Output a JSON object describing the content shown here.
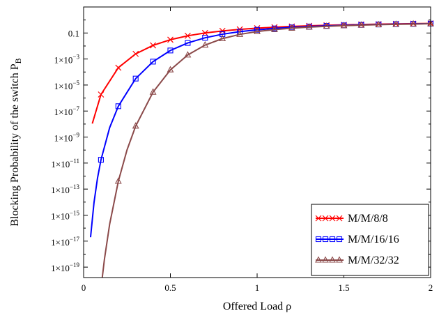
{
  "chart_data": {
    "type": "line",
    "title": "",
    "xlabel": "Offered Load  ρ",
    "ylabel": "Blocking Probability of the switch P",
    "ylabel_subscript": "B",
    "xlim": [
      0,
      2
    ],
    "ylim_log10": [
      -19.8,
      1.0
    ],
    "y_scale": "log",
    "grid": false,
    "legend_position": "bottom-right",
    "x_ticks": [
      {
        "value": 0,
        "label": "0"
      },
      {
        "value": 0.5,
        "label": "0.5"
      },
      {
        "value": 1,
        "label": "1"
      },
      {
        "value": 1.5,
        "label": "1.5"
      },
      {
        "value": 2,
        "label": "2"
      }
    ],
    "y_ticks": [
      {
        "exp": -1,
        "label": "0.1",
        "mant": "",
        "sup": ""
      },
      {
        "exp": -3,
        "label": "",
        "mant": "1×10",
        "sup": "−3"
      },
      {
        "exp": -5,
        "label": "",
        "mant": "1×10",
        "sup": "−5"
      },
      {
        "exp": -7,
        "label": "",
        "mant": "1×10",
        "sup": "−7"
      },
      {
        "exp": -9,
        "label": "",
        "mant": "1×10",
        "sup": "−9"
      },
      {
        "exp": -11,
        "label": "",
        "mant": "1×10",
        "sup": "−11"
      },
      {
        "exp": -13,
        "label": "",
        "mant": "1×10",
        "sup": "−13"
      },
      {
        "exp": -15,
        "label": "",
        "mant": "1×10",
        "sup": "−15"
      },
      {
        "exp": -17,
        "label": "",
        "mant": "1×10",
        "sup": "−17"
      },
      {
        "exp": -19,
        "label": "",
        "mant": "1×10",
        "sup": "−19"
      }
    ],
    "series": [
      {
        "name": "M/M/8/8",
        "color": "#ff0000",
        "marker": "x",
        "servers": 8,
        "x": [
          0.05,
          0.1,
          0.2,
          0.3,
          0.4,
          0.5,
          0.6,
          0.7,
          0.8,
          0.9,
          1.0,
          1.1,
          1.2,
          1.3,
          1.4,
          1.5,
          1.6,
          1.7,
          1.8,
          1.9,
          2.0
        ],
        "markers_x": [
          0.1,
          0.2,
          0.3,
          0.4,
          0.5,
          0.6,
          0.7,
          0.8,
          0.9,
          1.0,
          1.1,
          1.2,
          1.3,
          1.4,
          1.5,
          1.6,
          1.7,
          1.8,
          1.9,
          2.0
        ]
      },
      {
        "name": "M/M/16/16",
        "color": "#0000ff",
        "marker": "square",
        "servers": 16,
        "x": [
          0.04,
          0.06,
          0.08,
          0.1,
          0.15,
          0.2,
          0.3,
          0.4,
          0.5,
          0.6,
          0.7,
          0.8,
          0.9,
          1.0,
          1.1,
          1.2,
          1.3,
          1.4,
          1.5,
          1.6,
          1.7,
          1.8,
          1.9,
          2.0
        ],
        "markers_x": [
          0.1,
          0.2,
          0.3,
          0.4,
          0.5,
          0.6,
          0.7,
          0.8,
          0.9,
          1.0,
          1.1,
          1.2,
          1.3,
          1.4,
          1.5,
          1.6,
          1.7,
          1.8,
          1.9,
          2.0
        ]
      },
      {
        "name": "M/M/32/32",
        "color": "#8b4a4a",
        "marker": "triangle",
        "servers": 32,
        "x": [
          0.1,
          0.12,
          0.15,
          0.2,
          0.25,
          0.3,
          0.4,
          0.5,
          0.6,
          0.7,
          0.8,
          0.9,
          1.0,
          1.1,
          1.2,
          1.3,
          1.4,
          1.5,
          1.6,
          1.7,
          1.8,
          1.9,
          2.0
        ],
        "markers_x": [
          0.2,
          0.3,
          0.4,
          0.5,
          0.6,
          0.7,
          0.8,
          0.9,
          1.0,
          1.1,
          1.2,
          1.3,
          1.4,
          1.5,
          1.6,
          1.7,
          1.8,
          1.9,
          2.0
        ]
      }
    ]
  }
}
